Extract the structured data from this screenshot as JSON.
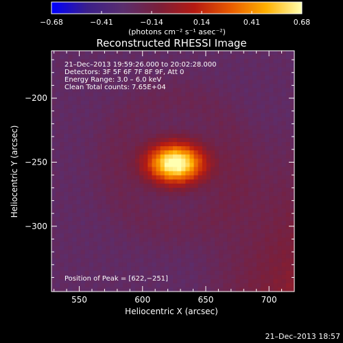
{
  "colors": {
    "background": "#000000",
    "text": "#ffffff",
    "colormap": [
      "#0000ff",
      "#3b1f8a",
      "#5a2e6e",
      "#7a1f3a",
      "#b51a12",
      "#e85a00",
      "#ffb000",
      "#ffffb0"
    ]
  },
  "colorbar": {
    "tick_labels": [
      "−0.68",
      "−0.41",
      "−0.14",
      "0.14",
      "0.41",
      "0.68"
    ],
    "range": [
      -0.68,
      0.68
    ],
    "units_label": "(photons cm⁻² s⁻¹ asec⁻²)"
  },
  "chart_data": {
    "type": "heatmap",
    "title": "Reconstructed RHESSI Image",
    "xlabel": "Heliocentric X (arcsec)",
    "ylabel": "Heliocentric Y (arcsec)",
    "xlim": [
      528,
      720
    ],
    "ylim": [
      -351,
      -163
    ],
    "x_ticks": [
      550,
      600,
      650,
      700
    ],
    "x_tick_labels": [
      "550",
      "600",
      "650",
      "700"
    ],
    "y_ticks": [
      -200,
      -250,
      -300
    ],
    "y_tick_labels": [
      "−200",
      "−250",
      "−300"
    ],
    "annotations": [
      "21–Dec–2013 19:59:26.000 to 20:02:28.000",
      "Detectors: 3F 5F 6F 7F 8F 9F, Att 0",
      "Energy Range: 3.0 – 6.0 keV",
      "Clean    Total counts: 7.65E+04"
    ],
    "peak_label": "Position of Peak = [622,−251]",
    "peak": {
      "x": 622,
      "y": -251,
      "value": 0.68
    },
    "background_level": -0.3,
    "grid": false
  },
  "footer": {
    "timestamp": "21–Dec–2013 18:57"
  }
}
